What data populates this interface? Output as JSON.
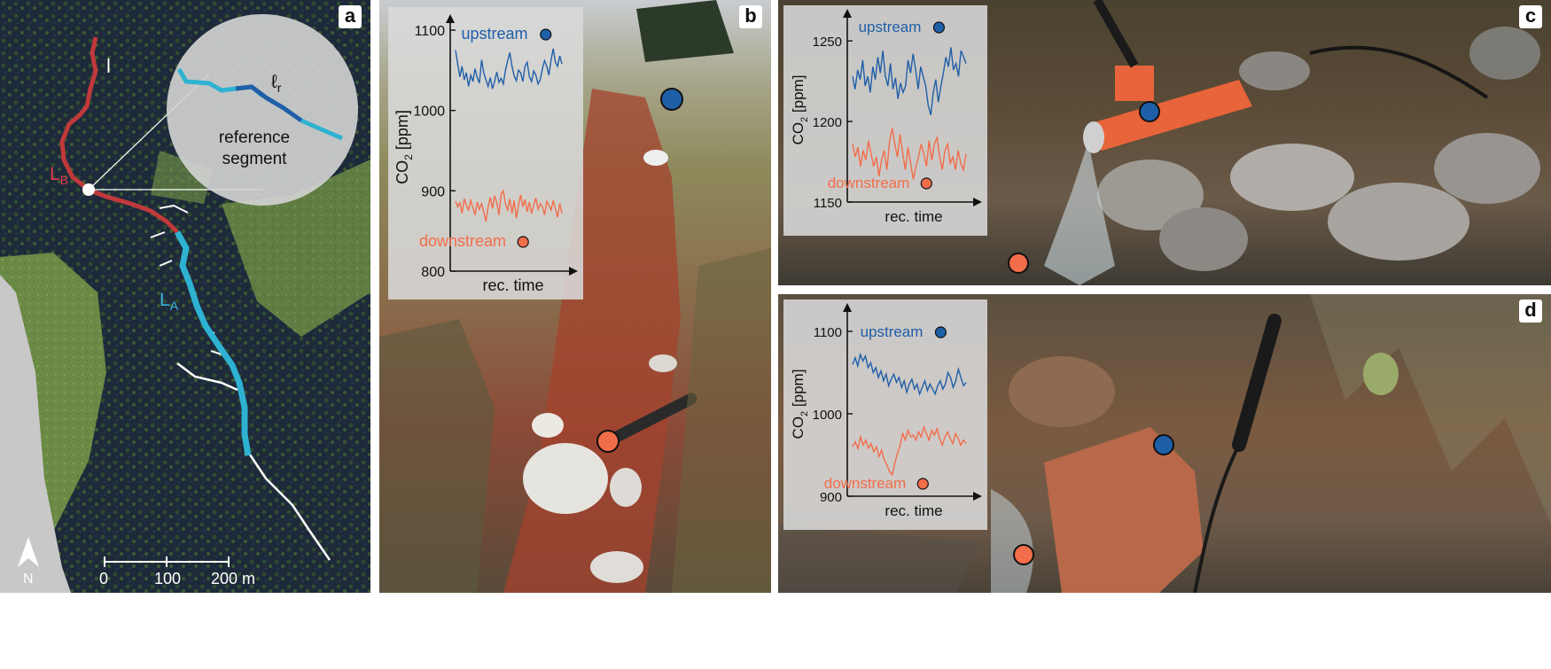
{
  "panels": {
    "a": {
      "label": "a"
    },
    "b": {
      "label": "b"
    },
    "c": {
      "label": "c"
    },
    "d": {
      "label": "d"
    }
  },
  "map": {
    "l_label": "l",
    "lb_main": "L",
    "lb_sub": "B",
    "la_main": "L",
    "la_sub": "A",
    "zoom_lr_main": "ℓ",
    "zoom_lr_sub": "r",
    "zoom_caption_line1": "reference",
    "zoom_caption_line2": "segment",
    "scale_0": "0",
    "scale_100": "100",
    "scale_200": "200 m",
    "north": "N"
  },
  "chart_data": [
    {
      "type": "line",
      "panel": "b",
      "xlabel": "rec. time",
      "ylabel": "CO2 [ppm]",
      "yticks": [
        800,
        900,
        1000,
        1100
      ],
      "ylim": [
        800,
        1100
      ],
      "series": [
        {
          "name": "upstream",
          "color": "#1f5fa8",
          "values": [
            1075,
            1058,
            1042,
            1055,
            1038,
            1047,
            1030,
            1044,
            1036,
            1052,
            1041,
            1034,
            1063,
            1047,
            1038,
            1030,
            1041,
            1027,
            1036,
            1048,
            1035,
            1040,
            1033,
            1050,
            1062,
            1072,
            1055,
            1043,
            1037,
            1050,
            1047,
            1036,
            1055,
            1060,
            1042,
            1036,
            1049,
            1044,
            1033,
            1038,
            1052,
            1062,
            1055,
            1044,
            1063,
            1077,
            1060,
            1055,
            1068,
            1058
          ]
        },
        {
          "name": "downstream",
          "color": "#f26d4a",
          "values": [
            887,
            880,
            885,
            872,
            890,
            882,
            876,
            888,
            879,
            870,
            886,
            877,
            884,
            874,
            862,
            880,
            892,
            878,
            894,
            885,
            870,
            896,
            900,
            884,
            876,
            890,
            872,
            888,
            866,
            882,
            895,
            880,
            889,
            874,
            886,
            872,
            882,
            891,
            877,
            884,
            880,
            870,
            887,
            882,
            876,
            888,
            878,
            867,
            884,
            872
          ]
        }
      ]
    },
    {
      "type": "line",
      "panel": "c",
      "xlabel": "rec. time",
      "ylabel": "CO2 [ppm]",
      "yticks": [
        1150,
        1200,
        1250
      ],
      "ylim": [
        1150,
        1260
      ],
      "series": [
        {
          "name": "upstream",
          "color": "#1f5fa8",
          "values": [
            1228,
            1220,
            1232,
            1226,
            1238,
            1222,
            1228,
            1218,
            1234,
            1226,
            1240,
            1230,
            1244,
            1228,
            1222,
            1236,
            1220,
            1227,
            1214,
            1224,
            1218,
            1222,
            1238,
            1230,
            1242,
            1232,
            1220,
            1234,
            1228,
            1222,
            1210,
            1204,
            1218,
            1226,
            1212,
            1222,
            1230,
            1240,
            1234,
            1246,
            1232,
            1236,
            1228,
            1244,
            1240,
            1236
          ]
        },
        {
          "name": "downstream",
          "color": "#f26d4a",
          "values": [
            1186,
            1178,
            1184,
            1172,
            1182,
            1176,
            1188,
            1180,
            1172,
            1178,
            1166,
            1176,
            1182,
            1170,
            1188,
            1196,
            1186,
            1178,
            1192,
            1180,
            1170,
            1184,
            1174,
            1164,
            1172,
            1178,
            1186,
            1180,
            1172,
            1188,
            1176,
            1186,
            1190,
            1178,
            1170,
            1182,
            1186,
            1174,
            1178,
            1170,
            1182,
            1174,
            1170,
            1180
          ]
        }
      ]
    },
    {
      "type": "line",
      "panel": "d",
      "xlabel": "rec. time",
      "ylabel": "CO2 [ppm]",
      "yticks": [
        900,
        1000,
        1100
      ],
      "ylim": [
        900,
        1115
      ],
      "series": [
        {
          "name": "upstream",
          "color": "#1f5fa8",
          "values": [
            1060,
            1068,
            1058,
            1072,
            1064,
            1070,
            1056,
            1062,
            1050,
            1056,
            1044,
            1052,
            1040,
            1048,
            1034,
            1042,
            1048,
            1038,
            1044,
            1032,
            1040,
            1026,
            1036,
            1042,
            1030,
            1036,
            1024,
            1032,
            1040,
            1028,
            1036,
            1030,
            1024,
            1034,
            1040,
            1030,
            1036,
            1050,
            1044,
            1032,
            1040,
            1054,
            1044,
            1034,
            1038
          ]
        },
        {
          "name": "downstream",
          "color": "#f26d4a",
          "values": [
            960,
            966,
            958,
            972,
            962,
            968,
            958,
            964,
            954,
            960,
            948,
            956,
            944,
            938,
            930,
            926,
            940,
            952,
            962,
            976,
            968,
            980,
            972,
            974,
            968,
            978,
            972,
            984,
            976,
            968,
            980,
            974,
            982,
            970,
            962,
            972,
            978,
            970,
            964,
            976,
            970,
            962,
            968,
            964
          ]
        }
      ]
    }
  ]
}
